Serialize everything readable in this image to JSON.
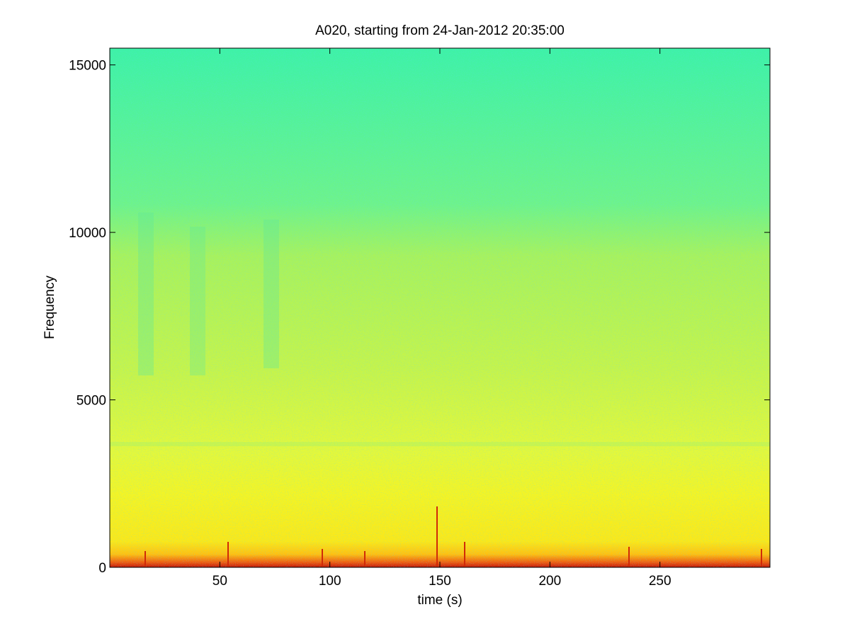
{
  "chart_data": {
    "type": "spectrogram",
    "title": "A020, starting from 24-Jan-2012 20:35:00",
    "xlabel": "time (s)",
    "ylabel": "Frequency",
    "xlim": [
      0,
      300
    ],
    "ylim": [
      0,
      15500
    ],
    "xticks": [
      50,
      100,
      150,
      200,
      250
    ],
    "yticks": [
      0,
      5000,
      10000,
      15000
    ],
    "colormap": "jet",
    "box": true
  }
}
